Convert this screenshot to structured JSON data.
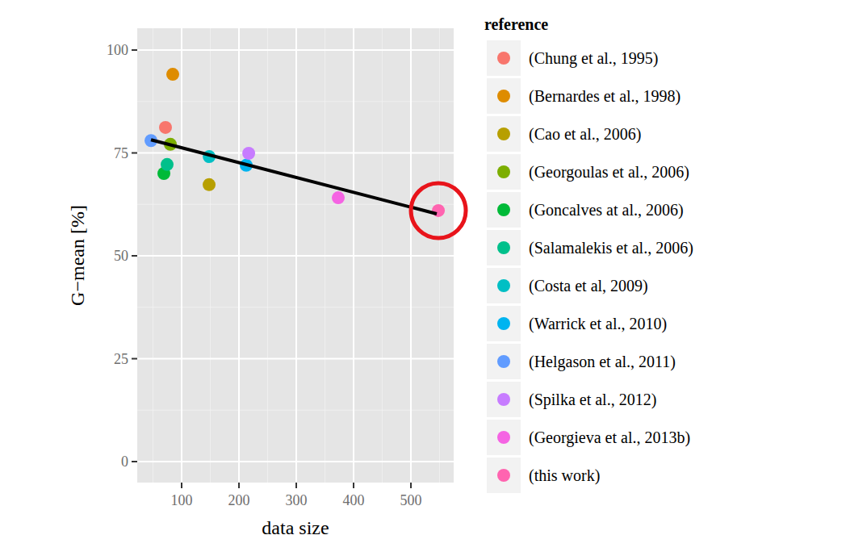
{
  "chart_data": {
    "type": "scatter",
    "xlabel": "data size",
    "ylabel": "G−mean [%]",
    "legend_title": "reference",
    "legend": "right",
    "grid": true,
    "marker": "circle",
    "xlim": [
      22.5,
      574.6
    ],
    "ylim": [
      -5.1,
      105.3
    ],
    "xticks": [
      100,
      200,
      300,
      400,
      500
    ],
    "yticks": [
      0,
      25,
      50,
      75,
      100
    ],
    "series": [
      {
        "name": "(Chung et al., 1995)",
        "color": "#F8766D",
        "x": [
          71.8
        ],
        "values": [
          81.2
        ]
      },
      {
        "name": "(Bernardes et al., 1998)",
        "color": "#DE8C00",
        "x": [
          84.5
        ],
        "values": [
          94.1
        ]
      },
      {
        "name": "(Cao et al., 2006)",
        "color": "#B79F00",
        "x": [
          147.9
        ],
        "values": [
          67.3
        ]
      },
      {
        "name": "(Georgoulas et al., 2006)",
        "color": "#7CAE00",
        "x": [
          80.3
        ],
        "values": [
          77.1
        ]
      },
      {
        "name": "(Goncalves at al., 2006)",
        "color": "#00BA38",
        "x": [
          69.0
        ],
        "values": [
          70.0
        ]
      },
      {
        "name": "(Salamalekis et al., 2006)",
        "color": "#00C08B",
        "x": [
          74.6
        ],
        "values": [
          72.2
        ]
      },
      {
        "name": "(Costa et al, 2009)",
        "color": "#00BFC4",
        "x": [
          148.0
        ],
        "values": [
          74.1
        ]
      },
      {
        "name": "(Warrick et al., 2010)",
        "color": "#00B4F0",
        "x": [
          212.7
        ],
        "values": [
          72.0
        ]
      },
      {
        "name": "(Helgason et al., 2011)",
        "color": "#619CFF",
        "x": [
          46.5
        ],
        "values": [
          78.0
        ]
      },
      {
        "name": "(Spilka et al., 2012)",
        "color": "#C77CFF",
        "x": [
          217.0
        ],
        "values": [
          74.9
        ]
      },
      {
        "name": "(Georgieva et al., 2013b)",
        "color": "#F564E3",
        "x": [
          373.2
        ],
        "values": [
          64.1
        ]
      },
      {
        "name": "(this work)",
        "color": "#FF64B0",
        "x": [
          547.9
        ],
        "values": [
          61.0
        ]
      }
    ],
    "trend_line": {
      "x": [
        46.5,
        545.0
      ],
      "values": [
        78.2,
        60.2
      ],
      "color": "#000000",
      "line_style": "solid"
    }
  }
}
